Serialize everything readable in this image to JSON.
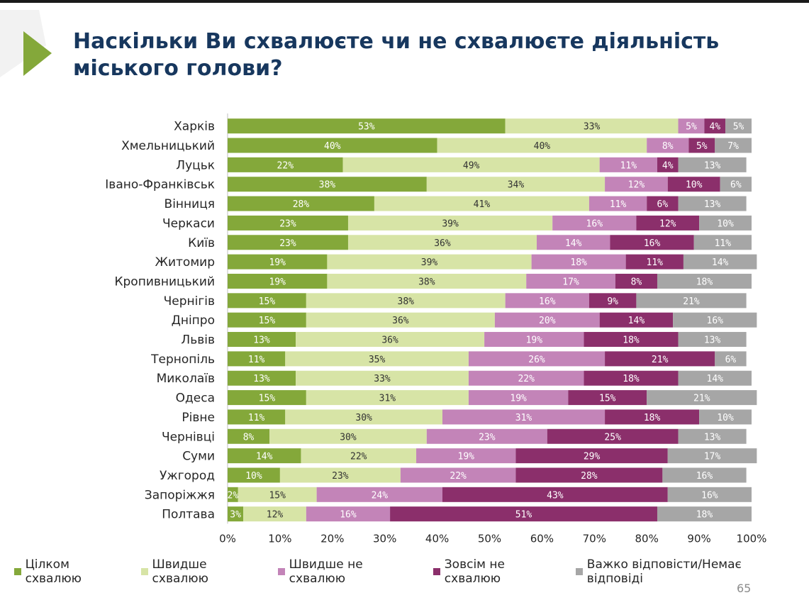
{
  "slide": {
    "title_line1": "Наскільки Ви схвалюєте чи не схвалюєте діяльність",
    "title_line2": "міського голови?",
    "page_number": "65",
    "icon": "green-triangle-arrow-icon"
  },
  "colors": {
    "title": "#17375e",
    "series": [
      "#84a83a",
      "#d7e4a6",
      "#c384b8",
      "#8b2f6b",
      "#a6a6a6"
    ]
  },
  "chart_data": {
    "type": "bar",
    "orientation": "horizontal",
    "stacked": true,
    "categories": [
      "Харків",
      "Хмельницький",
      "Луцьк",
      "Івано-Франківськ",
      "Вінниця",
      "Черкаси",
      "Київ",
      "Житомир",
      "Кропивницький",
      "Чернігів",
      "Дніпро",
      "Львів",
      "Тернопіль",
      "Миколаїв",
      "Одеса",
      "Рівне",
      "Чернівці",
      "Суми",
      "Ужгород",
      "Запоріжжя",
      "Полтава"
    ],
    "series": [
      {
        "name": "Цілком схвалюю",
        "values": [
          53,
          40,
          22,
          38,
          28,
          23,
          23,
          19,
          19,
          15,
          15,
          13,
          11,
          13,
          15,
          11,
          8,
          14,
          10,
          2,
          3
        ]
      },
      {
        "name": "Швидше схвалюю",
        "values": [
          33,
          40,
          49,
          34,
          41,
          39,
          36,
          39,
          38,
          38,
          36,
          36,
          35,
          33,
          31,
          30,
          30,
          22,
          23,
          15,
          12
        ]
      },
      {
        "name": "Швидше не схвалюю",
        "values": [
          5,
          8,
          11,
          12,
          11,
          16,
          14,
          18,
          17,
          16,
          20,
          19,
          26,
          22,
          19,
          31,
          23,
          19,
          22,
          24,
          16
        ]
      },
      {
        "name": "Зовсім не схвалюю",
        "values": [
          4,
          5,
          4,
          10,
          6,
          12,
          16,
          11,
          8,
          9,
          14,
          18,
          21,
          18,
          15,
          18,
          25,
          29,
          28,
          43,
          51
        ]
      },
      {
        "name": "Важко відповісти/Немає відповіді",
        "values": [
          5,
          7,
          13,
          6,
          13,
          10,
          11,
          14,
          18,
          21,
          16,
          13,
          6,
          14,
          21,
          10,
          13,
          17,
          16,
          16,
          18
        ]
      }
    ],
    "value_suffix": "%",
    "xlim": [
      0,
      100
    ],
    "x_ticks": [
      "0%",
      "10%",
      "20%",
      "30%",
      "40%",
      "50%",
      "60%",
      "70%",
      "80%",
      "90%",
      "100%"
    ],
    "grid": false,
    "legend_position": "bottom"
  }
}
